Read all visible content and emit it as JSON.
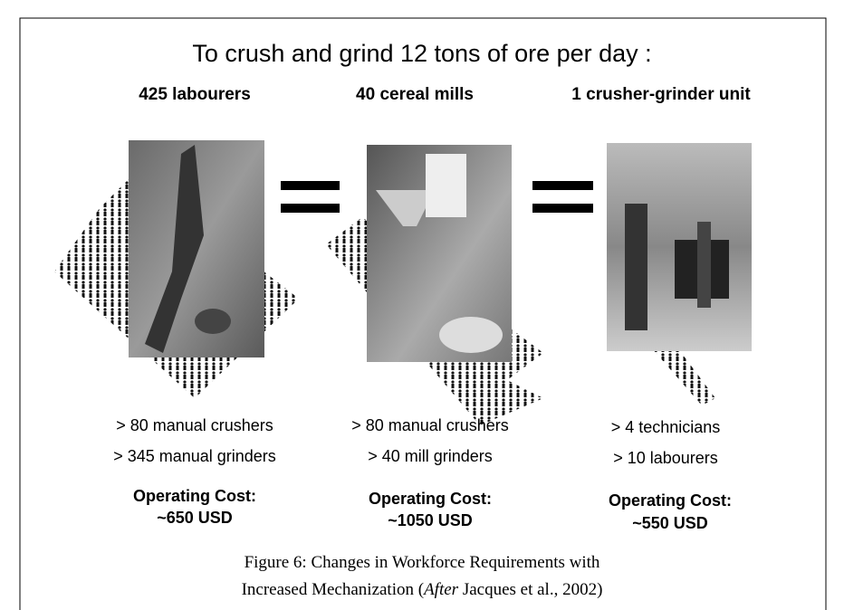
{
  "title": "To crush and grind 12 tons of ore per day :",
  "columns": [
    {
      "heading": "425 labourers",
      "lines": [
        "> 80 manual crushers",
        "> 345 manual grinders"
      ],
      "cost_label": "Operating Cost:",
      "cost_value": "~650 USD"
    },
    {
      "heading": "40 cereal mills",
      "lines": [
        "> 80 manual crushers",
        "> 40 mill grinders"
      ],
      "cost_label": "Operating Cost:",
      "cost_value": "~1050 USD"
    },
    {
      "heading": "1 crusher-grinder unit",
      "lines": [
        "> 4 technicians",
        "> 10 labourers"
      ],
      "cost_label": "Operating Cost:",
      "cost_value": "~550 USD"
    }
  ],
  "caption": {
    "line1": "Figure 6: Changes in Workforce Requirements with",
    "line2_prefix": "Increased Mechanization (",
    "line2_italic": "After",
    "line2_suffix": " Jacques et al., 2002)"
  }
}
